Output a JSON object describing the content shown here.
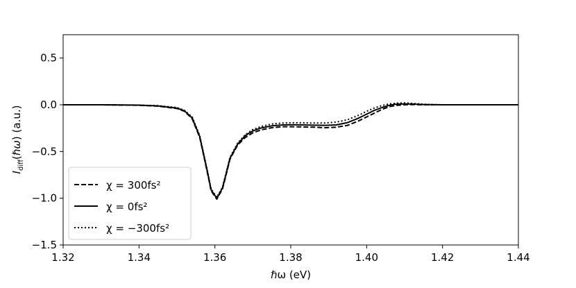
{
  "chart_data": {
    "type": "line",
    "title": "",
    "xlabel": "ℏω (eV)",
    "ylabel": "I_diff(ℏω) (a.u.)",
    "xlim": [
      1.32,
      1.44
    ],
    "ylim": [
      -1.5,
      0.75
    ],
    "xticks": [
      1.32,
      1.34,
      1.36,
      1.38,
      1.4,
      1.42,
      1.44
    ],
    "xtick_labels": [
      "1.32",
      "1.34",
      "1.36",
      "1.38",
      "1.40",
      "1.42",
      "1.44"
    ],
    "yticks": [
      -1.5,
      -1.0,
      -0.5,
      0.0,
      0.5
    ],
    "ytick_labels": [
      "−1.5",
      "−1.0",
      "−0.5",
      "0.0",
      "0.5"
    ],
    "grid": false,
    "legend_position": "lower-left",
    "x": [
      1.32,
      1.33,
      1.34,
      1.345,
      1.35,
      1.352,
      1.354,
      1.356,
      1.358,
      1.359,
      1.3605,
      1.362,
      1.363,
      1.364,
      1.366,
      1.368,
      1.37,
      1.372,
      1.375,
      1.378,
      1.38,
      1.383,
      1.386,
      1.389,
      1.392,
      1.395,
      1.398,
      1.4,
      1.402,
      1.404,
      1.406,
      1.408,
      1.41,
      1.412,
      1.415,
      1.42,
      1.425,
      1.43,
      1.44
    ],
    "series": [
      {
        "name": "χ = 300fs²",
        "style": "dashed",
        "values": [
          0.0,
          0.0,
          -0.005,
          -0.015,
          -0.04,
          -0.07,
          -0.15,
          -0.35,
          -0.72,
          -0.92,
          -1.01,
          -0.9,
          -0.74,
          -0.58,
          -0.43,
          -0.35,
          -0.3,
          -0.27,
          -0.245,
          -0.235,
          -0.235,
          -0.237,
          -0.24,
          -0.245,
          -0.24,
          -0.22,
          -0.17,
          -0.13,
          -0.09,
          -0.05,
          -0.02,
          -0.005,
          0.0,
          0.002,
          0.0,
          0.0,
          0.0,
          0.0,
          0.0
        ]
      },
      {
        "name": "χ = 0fs²",
        "style": "solid",
        "values": [
          0.0,
          0.0,
          -0.004,
          -0.012,
          -0.035,
          -0.065,
          -0.14,
          -0.34,
          -0.71,
          -0.91,
          -1.0,
          -0.89,
          -0.73,
          -0.57,
          -0.42,
          -0.33,
          -0.28,
          -0.25,
          -0.225,
          -0.215,
          -0.213,
          -0.215,
          -0.218,
          -0.22,
          -0.215,
          -0.19,
          -0.14,
          -0.1,
          -0.06,
          -0.03,
          -0.005,
          0.008,
          0.01,
          0.008,
          0.003,
          0.0,
          0.0,
          0.0,
          0.0
        ]
      },
      {
        "name": "χ = −300fs²",
        "style": "dotted",
        "values": [
          0.0,
          0.0,
          -0.004,
          -0.01,
          -0.03,
          -0.06,
          -0.13,
          -0.33,
          -0.7,
          -0.9,
          -0.99,
          -0.88,
          -0.72,
          -0.56,
          -0.41,
          -0.32,
          -0.265,
          -0.235,
          -0.205,
          -0.195,
          -0.192,
          -0.193,
          -0.195,
          -0.195,
          -0.185,
          -0.16,
          -0.11,
          -0.07,
          -0.035,
          -0.008,
          0.01,
          0.018,
          0.02,
          0.015,
          0.006,
          0.0,
          0.0,
          0.0,
          0.0
        ]
      }
    ]
  }
}
